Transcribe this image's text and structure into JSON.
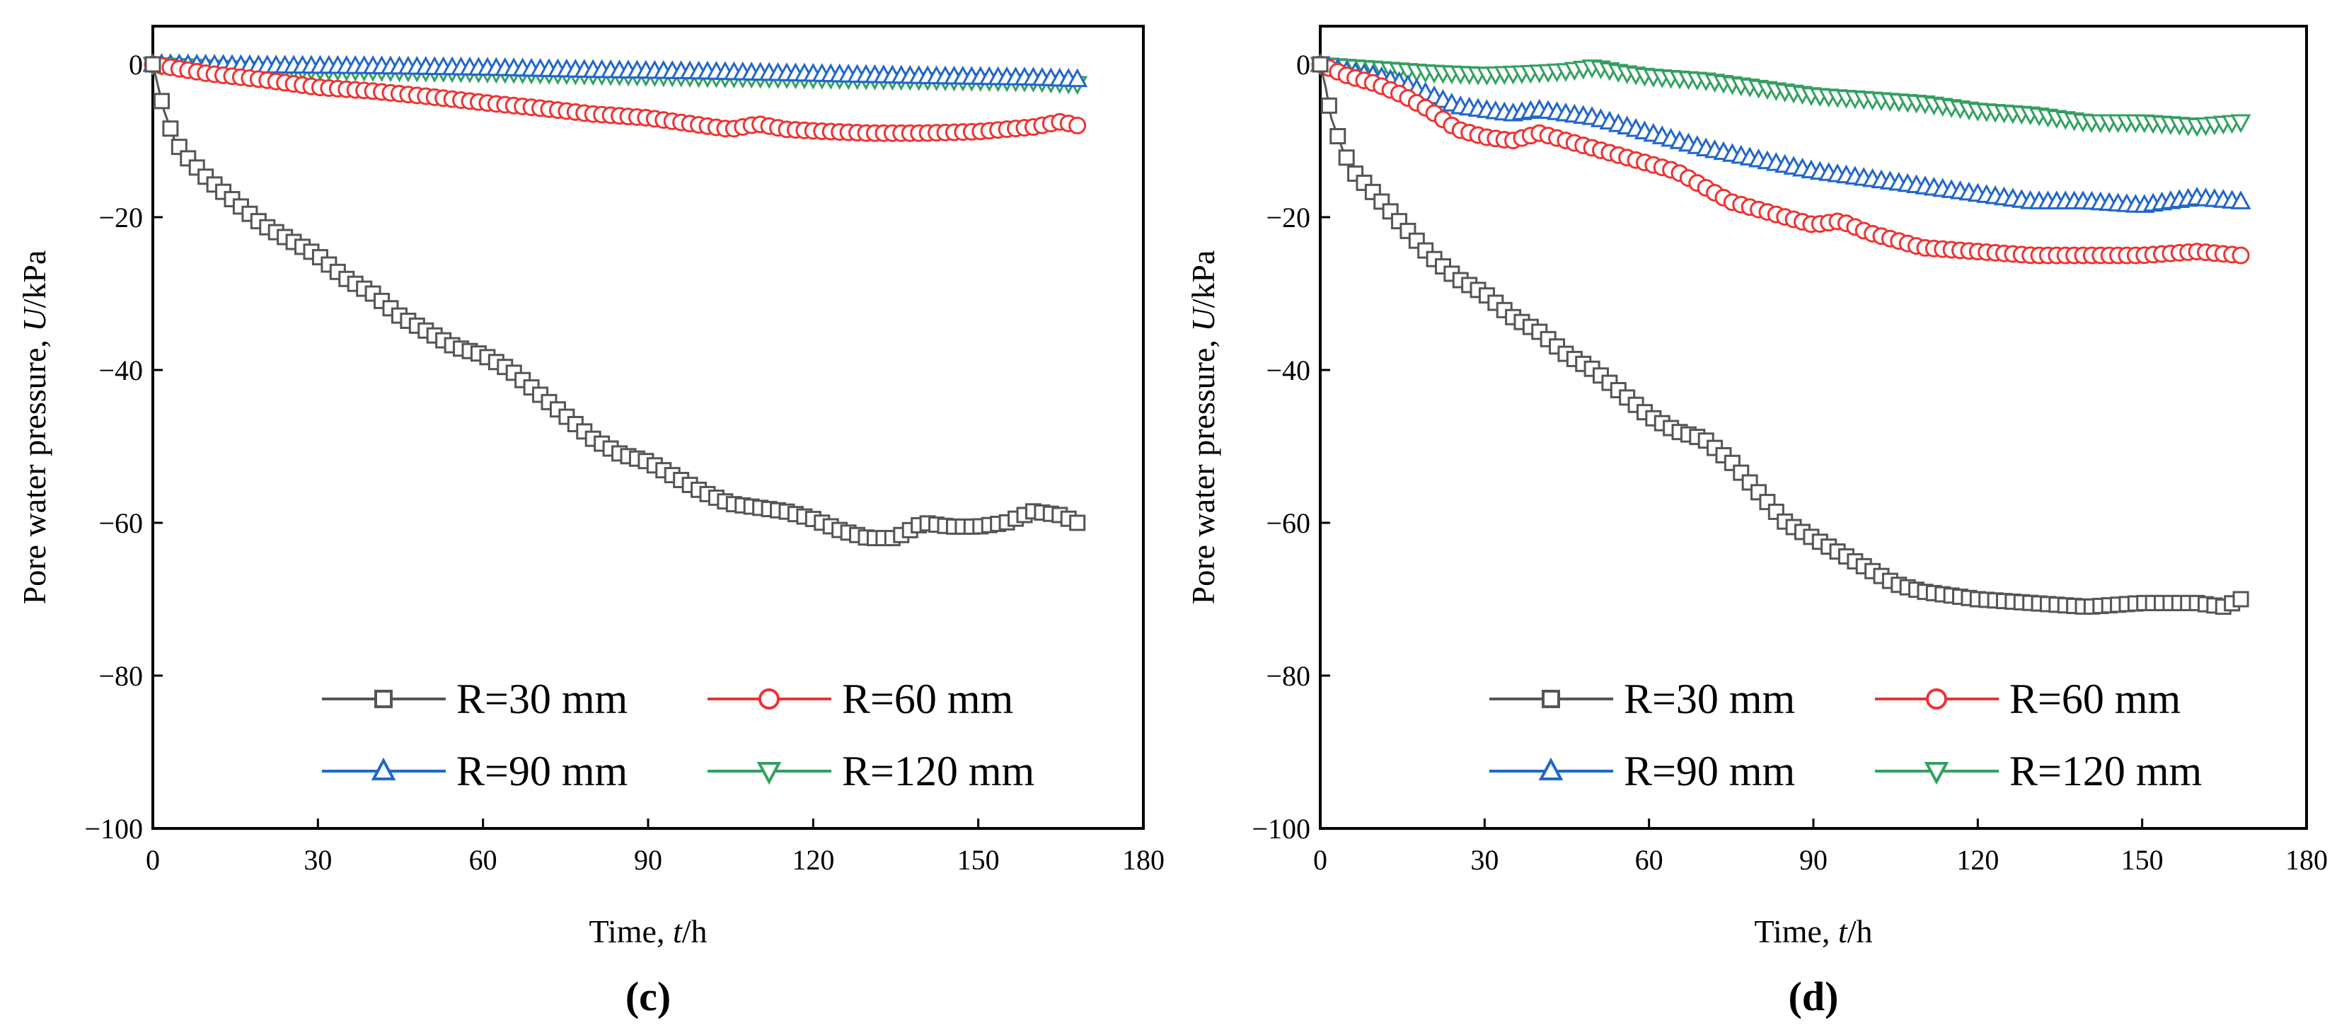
{
  "chart_data": [
    {
      "type": "line",
      "panel_label": "(c)",
      "xlabel_prefix": "Time, ",
      "xlabel_var": "t",
      "xlabel_suffix": "/h",
      "ylabel_prefix": "Pore water pressure, ",
      "ylabel_var": "U",
      "ylabel_suffix": "/kPa",
      "xlim": [
        0,
        180
      ],
      "ylim": [
        -100,
        5
      ],
      "xticks": [
        0,
        30,
        60,
        90,
        120,
        150,
        180
      ],
      "yticks": [
        0,
        -20,
        -40,
        -60,
        -80,
        -100
      ],
      "xtick_labels": [
        "0",
        "30",
        "60",
        "90",
        "120",
        "150",
        "180"
      ],
      "ytick_labels": [
        "0",
        "−20",
        "−40",
        "−60",
        "−80",
        "−100"
      ],
      "legend_position": "bottom-center",
      "series": [
        {
          "name": "R=30 mm",
          "color": "#555555",
          "marker": "square",
          "x": [
            0,
            1,
            2,
            4,
            6,
            10,
            15,
            20,
            25,
            30,
            35,
            40,
            45,
            50,
            55,
            60,
            65,
            70,
            75,
            80,
            85,
            90,
            95,
            100,
            105,
            110,
            115,
            120,
            125,
            130,
            135,
            140,
            145,
            150,
            155,
            160,
            165,
            168
          ],
          "y": [
            0,
            -3,
            -6,
            -10,
            -12,
            -15,
            -18,
            -21,
            -23,
            -25,
            -28,
            -30,
            -33,
            -35,
            -37,
            -38,
            -40,
            -43,
            -46,
            -49,
            -51,
            -52,
            -54,
            -56,
            -57.5,
            -58,
            -58.5,
            -59.5,
            -61,
            -62,
            -62,
            -60,
            -60.5,
            -60.5,
            -60,
            -58.5,
            -59,
            -60
          ]
        },
        {
          "name": "R=60 mm",
          "color": "#ee3333",
          "marker": "circle",
          "x": [
            0,
            10,
            20,
            30,
            40,
            50,
            60,
            70,
            80,
            90,
            100,
            105,
            110,
            115,
            120,
            130,
            140,
            150,
            160,
            165,
            168
          ],
          "y": [
            0,
            -1.2,
            -2,
            -3,
            -3.5,
            -4.2,
            -5,
            -5.7,
            -6.5,
            -7,
            -8,
            -8.5,
            -7.8,
            -8.5,
            -8.7,
            -9,
            -9,
            -8.8,
            -8.2,
            -7.5,
            -8
          ]
        },
        {
          "name": "R=90 mm",
          "color": "#2266cc",
          "marker": "triangle-up",
          "x": [
            0,
            20,
            40,
            60,
            80,
            100,
            120,
            140,
            160,
            168
          ],
          "y": [
            0,
            -0.2,
            -0.3,
            -0.5,
            -0.8,
            -1,
            -1.3,
            -1.6,
            -1.8,
            -2
          ]
        },
        {
          "name": "R=120 mm",
          "color": "#33a060",
          "marker": "triangle-down",
          "x": [
            0,
            20,
            40,
            60,
            80,
            100,
            120,
            140,
            160,
            168
          ],
          "y": [
            0,
            -0.6,
            -0.8,
            -1,
            -1.3,
            -1.6,
            -1.8,
            -2,
            -2.2,
            -2.5
          ]
        }
      ]
    },
    {
      "type": "line",
      "panel_label": "(d)",
      "xlabel_prefix": "Time, ",
      "xlabel_var": "t",
      "xlabel_suffix": "/h",
      "ylabel_prefix": "Pore water pressure, ",
      "ylabel_var": "U",
      "ylabel_suffix": "/kPa",
      "xlim": [
        0,
        180
      ],
      "ylim": [
        -100,
        5
      ],
      "xticks": [
        0,
        30,
        60,
        90,
        120,
        150,
        180
      ],
      "yticks": [
        0,
        -20,
        -40,
        -60,
        -80,
        -100
      ],
      "xtick_labels": [
        "0",
        "30",
        "60",
        "90",
        "120",
        "150",
        "180"
      ],
      "ytick_labels": [
        "0",
        "−20",
        "−40",
        "−60",
        "−80",
        "−100"
      ],
      "legend_position": "bottom-center",
      "series": [
        {
          "name": "R=30 mm",
          "color": "#555555",
          "marker": "square",
          "x": [
            0,
            1,
            2,
            4,
            6,
            10,
            15,
            20,
            25,
            30,
            35,
            40,
            45,
            50,
            55,
            60,
            65,
            70,
            75,
            80,
            85,
            90,
            95,
            100,
            105,
            110,
            115,
            120,
            130,
            140,
            150,
            160,
            165,
            168
          ],
          "y": [
            0,
            -3,
            -7,
            -11,
            -14,
            -17,
            -21,
            -25,
            -28,
            -30,
            -33,
            -35,
            -38,
            -40,
            -43,
            -46,
            -48,
            -49,
            -52,
            -56,
            -60,
            -62,
            -64,
            -66,
            -68,
            -69,
            -69.5,
            -70,
            -70.5,
            -71,
            -70.5,
            -70.5,
            -71,
            -70
          ]
        },
        {
          "name": "R=60 mm",
          "color": "#ee3333",
          "marker": "circle",
          "x": [
            0,
            5,
            10,
            15,
            20,
            25,
            30,
            35,
            40,
            45,
            50,
            55,
            60,
            65,
            70,
            75,
            80,
            85,
            90,
            95,
            100,
            110,
            120,
            130,
            140,
            150,
            160,
            168
          ],
          "y": [
            0,
            -1.5,
            -2.5,
            -4,
            -6,
            -8.5,
            -9.5,
            -10,
            -9,
            -10,
            -11,
            -12,
            -13,
            -14,
            -16,
            -18,
            -19,
            -20,
            -21,
            -20.5,
            -22,
            -24,
            -24.5,
            -25,
            -25,
            -25,
            -24.5,
            -25
          ]
        },
        {
          "name": "R=90 mm",
          "color": "#2266cc",
          "marker": "triangle-up",
          "x": [
            0,
            5,
            10,
            15,
            20,
            25,
            30,
            35,
            40,
            45,
            50,
            60,
            70,
            80,
            90,
            100,
            110,
            120,
            130,
            140,
            150,
            160,
            168
          ],
          "y": [
            0,
            -1,
            -1.5,
            -2.5,
            -4,
            -5.5,
            -6,
            -6.5,
            -6,
            -6.5,
            -7,
            -9,
            -11,
            -12.5,
            -14,
            -15,
            -16,
            -17,
            -18,
            -18,
            -18.5,
            -17.5,
            -18
          ]
        },
        {
          "name": "R=120 mm",
          "color": "#33a060",
          "marker": "triangle-down",
          "x": [
            0,
            10,
            20,
            30,
            40,
            45,
            50,
            55,
            60,
            70,
            80,
            90,
            100,
            110,
            120,
            130,
            140,
            150,
            160,
            168
          ],
          "y": [
            0,
            -0.5,
            -1,
            -1.3,
            -1,
            -0.8,
            -0.3,
            -1,
            -1.5,
            -2,
            -3,
            -4,
            -4.5,
            -5,
            -6,
            -6.5,
            -7.5,
            -7.5,
            -8,
            -7.5
          ]
        }
      ]
    }
  ]
}
